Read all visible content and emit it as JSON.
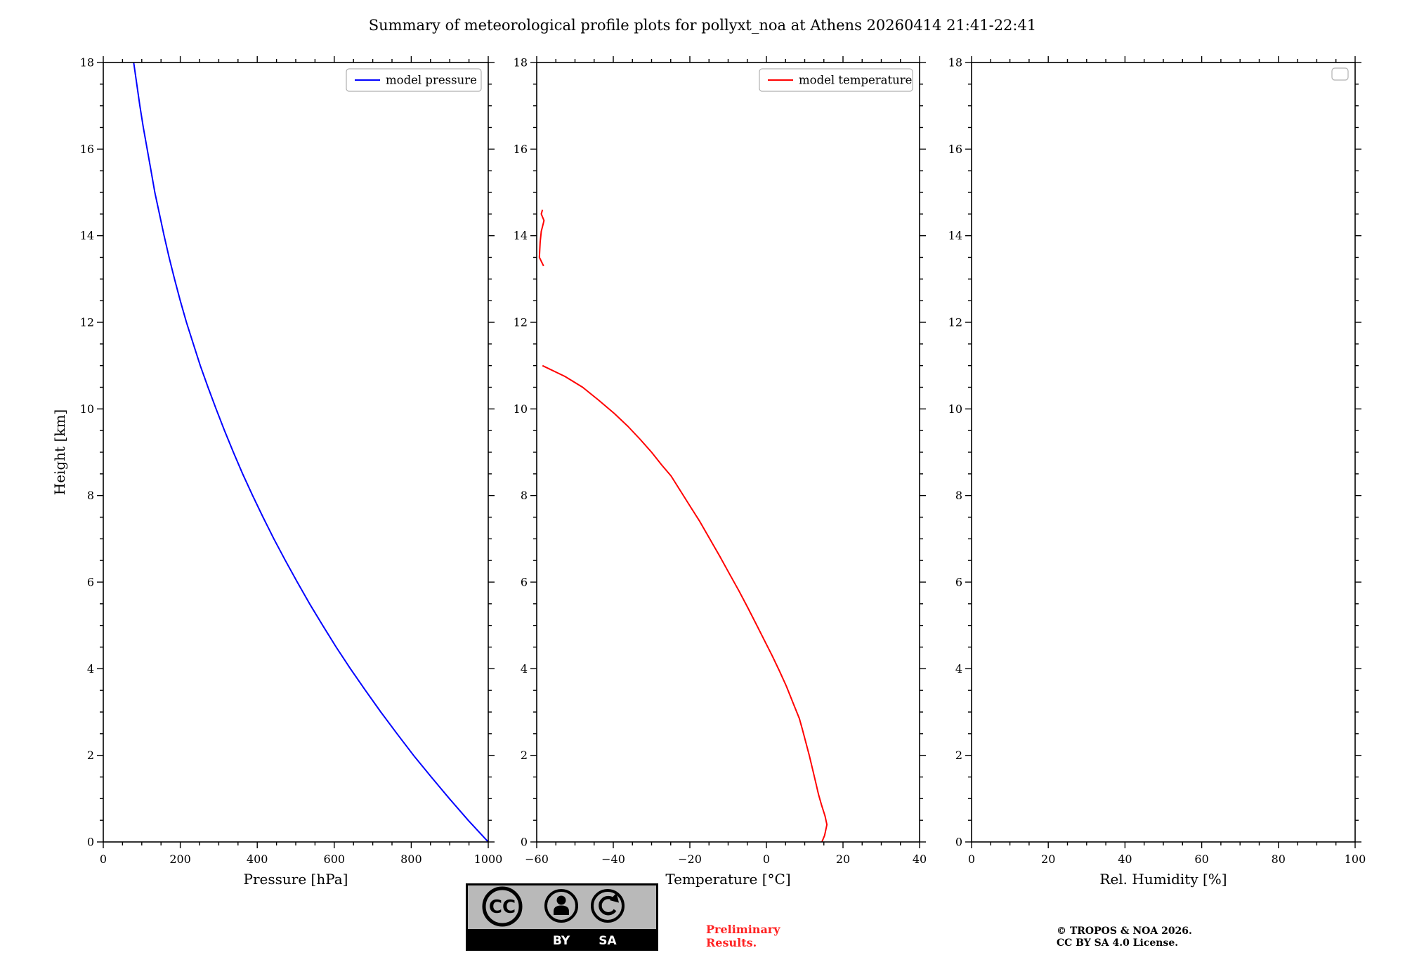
{
  "title": "Summary of meteorological profile plots for pollyxt_noa at Athens 20260414 21:41-22:41",
  "colors": {
    "pressure_line": "#0000ff",
    "temperature_line": "#ff0000",
    "preliminary_text": "#ff2222",
    "legend_border": "#b0b0b0"
  },
  "footer": {
    "preliminary": [
      "Preliminary",
      "Results."
    ],
    "copyright": [
      "© TROPOS & NOA 2026.",
      "CC BY SA 4.0 License."
    ],
    "badge_labels": {
      "cc": "CC",
      "by": "BY",
      "sa": "SA"
    }
  },
  "chart_data": [
    {
      "name": "pressure",
      "type": "line",
      "xlabel": "Pressure [hPa]",
      "ylabel": "Height [km]",
      "xlim": [
        0,
        1000
      ],
      "ylim": [
        0,
        18
      ],
      "xticks": [
        0,
        200,
        400,
        600,
        800,
        1000
      ],
      "xtick_labels": [
        "0",
        "200",
        "400",
        "600",
        "800",
        "1000"
      ],
      "yticks": [
        0,
        2,
        4,
        6,
        8,
        10,
        12,
        14,
        16,
        18
      ],
      "ytick_labels": [
        "0",
        "2",
        "4",
        "6",
        "8",
        "10",
        "12",
        "14",
        "16",
        "18"
      ],
      "x_minor_step": 50,
      "y_minor_step": 0.5,
      "grid": false,
      "legend": [
        {
          "label": "model pressure",
          "color": "#0000ff"
        }
      ],
      "legend_empty": false,
      "series": [
        {
          "name": "model-pressure",
          "color": "#0000ff",
          "points": [
            [
              1000,
              0
            ],
            [
              948,
              0.5
            ],
            [
              899,
              1
            ],
            [
              852,
              1.5
            ],
            [
              806,
              2
            ],
            [
              763,
              2.5
            ],
            [
              721,
              3
            ],
            [
              681,
              3.5
            ],
            [
              642,
              4
            ],
            [
              605,
              4.5
            ],
            [
              570,
              5
            ],
            [
              536,
              5.5
            ],
            [
              504,
              6
            ],
            [
              473,
              6.5
            ],
            [
              443,
              7
            ],
            [
              415,
              7.5
            ],
            [
              388,
              8
            ],
            [
              362,
              8.5
            ],
            [
              338,
              9
            ],
            [
              315,
              9.5
            ],
            [
              293,
              10
            ],
            [
              272,
              10.5
            ],
            [
              252,
              11
            ],
            [
              234,
              11.5
            ],
            [
              216,
              12
            ],
            [
              200,
              12.5
            ],
            [
              185,
              13
            ],
            [
              171,
              13.5
            ],
            [
              158,
              14
            ],
            [
              146,
              14.5
            ],
            [
              134,
              15
            ],
            [
              124,
              15.5
            ],
            [
              114,
              16
            ],
            [
              104,
              16.5
            ],
            [
              95,
              17
            ],
            [
              87,
              17.5
            ],
            [
              79,
              18
            ]
          ]
        }
      ]
    },
    {
      "name": "temperature",
      "type": "line",
      "xlabel": "Temperature [°C]",
      "ylabel": "",
      "xlim": [
        -60,
        40
      ],
      "ylim": [
        0,
        18
      ],
      "xticks": [
        -60,
        -40,
        -20,
        0,
        20,
        40
      ],
      "xtick_labels": [
        "−60",
        "−40",
        "−20",
        "0",
        "20",
        "40"
      ],
      "yticks": [
        0,
        2,
        4,
        6,
        8,
        10,
        12,
        14,
        16,
        18
      ],
      "ytick_labels": [
        "0",
        "2",
        "4",
        "6",
        "8",
        "10",
        "12",
        "14",
        "16",
        "18"
      ],
      "x_minor_step": 5,
      "y_minor_step": 0.5,
      "grid": false,
      "legend": [
        {
          "label": "model temperature",
          "color": "#ff0000"
        }
      ],
      "legend_empty": false,
      "series": [
        {
          "name": "model-temperature-lower",
          "color": "#ff0000",
          "points": [
            [
              14.5,
              0
            ],
            [
              15.2,
              0.15
            ],
            [
              15.8,
              0.4
            ],
            [
              15.3,
              0.6
            ],
            [
              14.4,
              0.85
            ],
            [
              13.6,
              1.1
            ],
            [
              12.8,
              1.4
            ],
            [
              12.0,
              1.7
            ],
            [
              11.2,
              2.0
            ],
            [
              10.3,
              2.3
            ],
            [
              9.4,
              2.6
            ],
            [
              8.6,
              2.85
            ],
            [
              7.0,
              3.2
            ],
            [
              5.2,
              3.6
            ],
            [
              3.4,
              3.95
            ],
            [
              1.5,
              4.3
            ],
            [
              -0.5,
              4.65
            ],
            [
              -2.5,
              5.0
            ],
            [
              -4.8,
              5.4
            ],
            [
              -7.2,
              5.8
            ],
            [
              -9.7,
              6.2
            ],
            [
              -12.2,
              6.6
            ],
            [
              -14.8,
              7.0
            ],
            [
              -17.4,
              7.4
            ],
            [
              -19.9,
              7.75
            ],
            [
              -22.4,
              8.1
            ],
            [
              -24.9,
              8.45
            ],
            [
              -27.3,
              8.7
            ],
            [
              -30.0,
              9.0
            ],
            [
              -33.0,
              9.3
            ],
            [
              -36.2,
              9.6
            ],
            [
              -39.8,
              9.9
            ],
            [
              -43.8,
              10.2
            ],
            [
              -48.0,
              10.5
            ],
            [
              -52.6,
              10.75
            ],
            [
              -58.5,
              11.0
            ]
          ]
        },
        {
          "name": "model-temperature-upper",
          "color": "#ff0000",
          "points": [
            [
              -58.2,
              13.3
            ],
            [
              -59.3,
              13.5
            ],
            [
              -59.1,
              13.85
            ],
            [
              -58.8,
              14.1
            ],
            [
              -58.1,
              14.35
            ],
            [
              -58.8,
              14.5
            ],
            [
              -58.5,
              14.6
            ]
          ]
        }
      ]
    },
    {
      "name": "humidity",
      "type": "line",
      "xlabel": "Rel. Humidity [%]",
      "ylabel": "",
      "xlim": [
        0,
        100
      ],
      "ylim": [
        0,
        18
      ],
      "xticks": [
        0,
        20,
        40,
        60,
        80,
        100
      ],
      "xtick_labels": [
        "0",
        "20",
        "40",
        "60",
        "80",
        "100"
      ],
      "yticks": [
        0,
        2,
        4,
        6,
        8,
        10,
        12,
        14,
        16,
        18
      ],
      "ytick_labels": [
        "0",
        "2",
        "4",
        "6",
        "8",
        "10",
        "12",
        "14",
        "16",
        "18"
      ],
      "x_minor_step": 5,
      "y_minor_step": 0.5,
      "grid": false,
      "legend": [],
      "legend_empty": true,
      "series": []
    }
  ]
}
